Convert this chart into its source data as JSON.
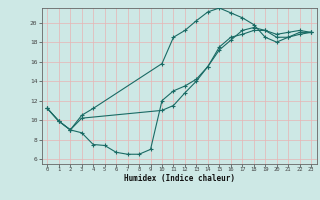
{
  "xlabel": "Humidex (Indice chaleur)",
  "bg_color": "#cde8e5",
  "grid_color": "#e8b4b4",
  "line_color": "#1a6b65",
  "xlim": [
    -0.5,
    23.5
  ],
  "ylim": [
    5.5,
    21.5
  ],
  "xticks": [
    0,
    1,
    2,
    3,
    4,
    5,
    6,
    7,
    8,
    9,
    10,
    11,
    12,
    13,
    14,
    15,
    16,
    17,
    18,
    19,
    20,
    21,
    22,
    23
  ],
  "yticks": [
    6,
    8,
    10,
    12,
    14,
    16,
    18,
    20
  ],
  "line1_x": [
    0,
    1,
    2,
    3,
    4,
    5,
    6,
    7,
    8,
    9,
    10,
    11,
    12,
    13,
    14,
    15,
    16,
    17,
    18,
    19,
    20,
    21,
    22,
    23
  ],
  "line1_y": [
    11.2,
    9.9,
    9.0,
    8.7,
    7.5,
    7.4,
    6.7,
    6.5,
    6.5,
    7.0,
    12.0,
    13.0,
    13.5,
    14.2,
    15.5,
    17.2,
    18.2,
    19.2,
    19.5,
    19.2,
    18.8,
    19.0,
    19.2,
    19.0
  ],
  "line2_x": [
    0,
    1,
    2,
    3,
    4,
    10,
    11,
    12,
    13,
    14,
    15,
    16,
    17,
    18,
    19,
    20,
    21,
    22,
    23
  ],
  "line2_y": [
    11.2,
    9.9,
    9.0,
    10.5,
    11.2,
    15.8,
    18.5,
    19.2,
    20.2,
    21.1,
    21.5,
    21.0,
    20.5,
    19.8,
    18.5,
    18.0,
    18.5,
    19.0,
    19.0
  ],
  "line3_x": [
    0,
    1,
    2,
    3,
    10,
    11,
    12,
    13,
    14,
    15,
    16,
    17,
    18,
    19,
    20,
    21,
    22,
    23
  ],
  "line3_y": [
    11.2,
    9.9,
    9.0,
    10.2,
    11.0,
    11.5,
    12.8,
    14.0,
    15.5,
    17.5,
    18.5,
    18.8,
    19.2,
    19.2,
    18.5,
    18.5,
    18.8,
    19.0
  ]
}
